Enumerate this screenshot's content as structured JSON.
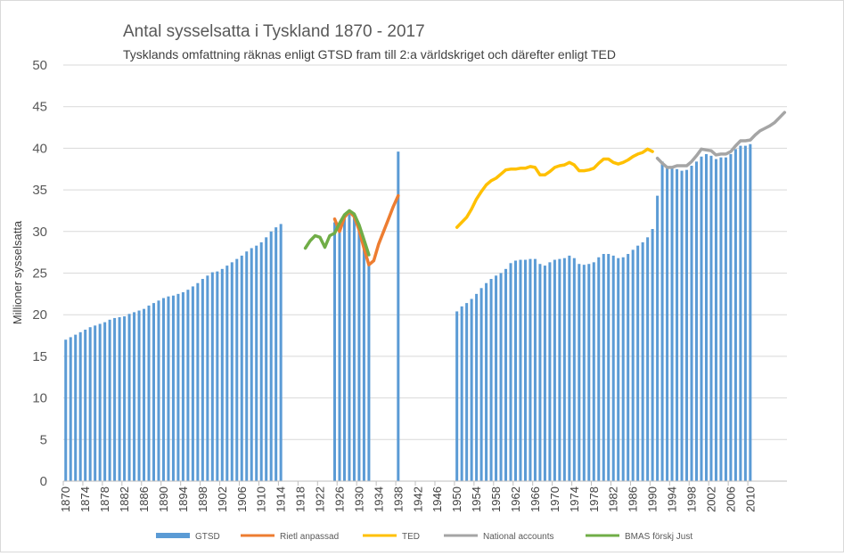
{
  "chart_data": {
    "type": "bar",
    "title": "Antal sysselsatta i Tyskland  1870 - 2017",
    "subtitle": "Tysklands omfattning räknas enligt GTSD fram till 2:a världskriget och därefter enligt TED",
    "xlabel": "",
    "ylabel": "Millioner sysselsatta",
    "xlim": [
      1870,
      2017
    ],
    "ylim": [
      0,
      50
    ],
    "yticks": [
      0,
      5,
      10,
      15,
      20,
      25,
      30,
      35,
      40,
      45,
      50
    ],
    "xtick_labels": [
      "1870",
      "1874",
      "1878",
      "1882",
      "1886",
      "1890",
      "1894",
      "1898",
      "1902",
      "1906",
      "1910",
      "1914",
      "1918",
      "1922",
      "1926",
      "1930",
      "1934",
      "1938",
      "1942",
      "1946",
      "1950",
      "1954",
      "1958",
      "1962",
      "1966",
      "1970",
      "1974",
      "1978",
      "1982",
      "1986",
      "1990",
      "1994",
      "1998",
      "2002",
      "2006",
      "2010"
    ],
    "grid": "horizontal",
    "legend_position": "bottom",
    "bar_series": {
      "name": "GTSD",
      "color": "#5b9bd5",
      "points": [
        [
          1870,
          17.0
        ],
        [
          1871,
          17.3
        ],
        [
          1872,
          17.6
        ],
        [
          1873,
          17.9
        ],
        [
          1874,
          18.2
        ],
        [
          1875,
          18.5
        ],
        [
          1876,
          18.7
        ],
        [
          1877,
          18.9
        ],
        [
          1878,
          19.1
        ],
        [
          1879,
          19.4
        ],
        [
          1880,
          19.6
        ],
        [
          1881,
          19.7
        ],
        [
          1882,
          19.8
        ],
        [
          1883,
          20.1
        ],
        [
          1884,
          20.3
        ],
        [
          1885,
          20.5
        ],
        [
          1886,
          20.7
        ],
        [
          1887,
          21.1
        ],
        [
          1888,
          21.4
        ],
        [
          1889,
          21.7
        ],
        [
          1890,
          22.0
        ],
        [
          1891,
          22.2
        ],
        [
          1892,
          22.3
        ],
        [
          1893,
          22.5
        ],
        [
          1894,
          22.7
        ],
        [
          1895,
          23.0
        ],
        [
          1896,
          23.4
        ],
        [
          1897,
          23.8
        ],
        [
          1898,
          24.3
        ],
        [
          1899,
          24.7
        ],
        [
          1900,
          25.1
        ],
        [
          1901,
          25.2
        ],
        [
          1902,
          25.5
        ],
        [
          1903,
          25.9
        ],
        [
          1904,
          26.3
        ],
        [
          1905,
          26.7
        ],
        [
          1906,
          27.1
        ],
        [
          1907,
          27.6
        ],
        [
          1908,
          28.0
        ],
        [
          1909,
          28.3
        ],
        [
          1910,
          28.7
        ],
        [
          1911,
          29.3
        ],
        [
          1912,
          30.0
        ],
        [
          1913,
          30.5
        ],
        [
          1914,
          30.9
        ],
        [
          1925,
          31.1
        ],
        [
          1926,
          30.3
        ],
        [
          1927,
          31.8
        ],
        [
          1928,
          32.4
        ],
        [
          1929,
          32.0
        ],
        [
          1930,
          30.4
        ],
        [
          1931,
          28.1
        ],
        [
          1932,
          26.0
        ],
        [
          1938,
          39.6
        ],
        [
          1950,
          20.4
        ],
        [
          1951,
          21.0
        ],
        [
          1952,
          21.4
        ],
        [
          1953,
          21.9
        ],
        [
          1954,
          22.5
        ],
        [
          1955,
          23.2
        ],
        [
          1956,
          23.8
        ],
        [
          1957,
          24.3
        ],
        [
          1958,
          24.7
        ],
        [
          1959,
          25.0
        ],
        [
          1960,
          25.5
        ],
        [
          1961,
          26.2
        ],
        [
          1962,
          26.5
        ],
        [
          1963,
          26.6
        ],
        [
          1964,
          26.6
        ],
        [
          1965,
          26.7
        ],
        [
          1966,
          26.7
        ],
        [
          1967,
          26.1
        ],
        [
          1968,
          25.9
        ],
        [
          1969,
          26.3
        ],
        [
          1970,
          26.6
        ],
        [
          1971,
          26.7
        ],
        [
          1972,
          26.8
        ],
        [
          1973,
          27.1
        ],
        [
          1974,
          26.8
        ],
        [
          1975,
          26.1
        ],
        [
          1976,
          26.0
        ],
        [
          1977,
          26.1
        ],
        [
          1978,
          26.3
        ],
        [
          1979,
          26.9
        ],
        [
          1980,
          27.3
        ],
        [
          1981,
          27.3
        ],
        [
          1982,
          27.1
        ],
        [
          1983,
          26.8
        ],
        [
          1984,
          26.9
        ],
        [
          1985,
          27.3
        ],
        [
          1986,
          27.8
        ],
        [
          1987,
          28.3
        ],
        [
          1988,
          28.7
        ],
        [
          1989,
          29.3
        ],
        [
          1990,
          30.3
        ],
        [
          1991,
          34.3
        ],
        [
          1992,
          38.4
        ],
        [
          1993,
          37.7
        ],
        [
          1994,
          37.6
        ],
        [
          1995,
          37.5
        ],
        [
          1996,
          37.3
        ],
        [
          1997,
          37.4
        ],
        [
          1998,
          37.9
        ],
        [
          1999,
          38.4
        ],
        [
          2000,
          39.0
        ],
        [
          2001,
          39.3
        ],
        [
          2002,
          39.1
        ],
        [
          2003,
          38.7
        ],
        [
          2004,
          38.9
        ],
        [
          2005,
          38.9
        ],
        [
          2006,
          39.3
        ],
        [
          2007,
          39.9
        ],
        [
          2008,
          40.3
        ],
        [
          2009,
          40.3
        ],
        [
          2010,
          40.5
        ]
      ]
    },
    "line_series": [
      {
        "name": "Rietl anpassad",
        "color": "#ed7d31",
        "points": [
          [
            1925,
            31.5
          ],
          [
            1926,
            30.0
          ],
          [
            1927,
            31.7
          ],
          [
            1928,
            32.4
          ],
          [
            1929,
            31.8
          ],
          [
            1930,
            30.2
          ],
          [
            1931,
            28.0
          ],
          [
            1932,
            26.0
          ],
          [
            1933,
            26.5
          ],
          [
            1934,
            28.5
          ],
          [
            1935,
            30.0
          ],
          [
            1936,
            31.5
          ],
          [
            1937,
            33.0
          ],
          [
            1938,
            34.3
          ]
        ]
      },
      {
        "name": "TED",
        "color": "#ffc000",
        "points": [
          [
            1950,
            30.5
          ],
          [
            1951,
            31.1
          ],
          [
            1952,
            31.7
          ],
          [
            1953,
            32.7
          ],
          [
            1954,
            33.9
          ],
          [
            1955,
            34.8
          ],
          [
            1956,
            35.6
          ],
          [
            1957,
            36.1
          ],
          [
            1958,
            36.4
          ],
          [
            1959,
            36.9
          ],
          [
            1960,
            37.4
          ],
          [
            1961,
            37.5
          ],
          [
            1962,
            37.5
          ],
          [
            1963,
            37.6
          ],
          [
            1964,
            37.6
          ],
          [
            1965,
            37.8
          ],
          [
            1966,
            37.7
          ],
          [
            1967,
            36.8
          ],
          [
            1968,
            36.8
          ],
          [
            1969,
            37.2
          ],
          [
            1970,
            37.7
          ],
          [
            1971,
            37.9
          ],
          [
            1972,
            38.0
          ],
          [
            1973,
            38.3
          ],
          [
            1974,
            38.0
          ],
          [
            1975,
            37.3
          ],
          [
            1976,
            37.3
          ],
          [
            1977,
            37.4
          ],
          [
            1978,
            37.6
          ],
          [
            1979,
            38.2
          ],
          [
            1980,
            38.7
          ],
          [
            1981,
            38.7
          ],
          [
            1982,
            38.3
          ],
          [
            1983,
            38.1
          ],
          [
            1984,
            38.3
          ],
          [
            1985,
            38.6
          ],
          [
            1986,
            39.0
          ],
          [
            1987,
            39.3
          ],
          [
            1988,
            39.5
          ],
          [
            1989,
            39.9
          ],
          [
            1990,
            39.6
          ]
        ]
      },
      {
        "name": "National accounts",
        "color": "#a5a5a5",
        "points": [
          [
            1991,
            38.8
          ],
          [
            1992,
            38.2
          ],
          [
            1993,
            37.7
          ],
          [
            1994,
            37.7
          ],
          [
            1995,
            37.9
          ],
          [
            1996,
            37.9
          ],
          [
            1997,
            37.9
          ],
          [
            1998,
            38.4
          ],
          [
            1999,
            39.1
          ],
          [
            2000,
            39.9
          ],
          [
            2001,
            39.8
          ],
          [
            2002,
            39.7
          ],
          [
            2003,
            39.2
          ],
          [
            2004,
            39.3
          ],
          [
            2005,
            39.3
          ],
          [
            2006,
            39.6
          ],
          [
            2007,
            40.3
          ],
          [
            2008,
            40.9
          ],
          [
            2009,
            40.9
          ],
          [
            2010,
            41.0
          ],
          [
            2011,
            41.6
          ],
          [
            2012,
            42.1
          ],
          [
            2013,
            42.4
          ],
          [
            2014,
            42.7
          ],
          [
            2015,
            43.1
          ],
          [
            2016,
            43.7
          ],
          [
            2017,
            44.3
          ]
        ]
      },
      {
        "name": "BMAS förskj Just",
        "color": "#70ad47",
        "points": [
          [
            1919,
            28.0
          ],
          [
            1920,
            28.9
          ],
          [
            1921,
            29.5
          ],
          [
            1922,
            29.3
          ],
          [
            1923,
            28.1
          ],
          [
            1924,
            29.5
          ],
          [
            1925,
            29.8
          ],
          [
            1926,
            31.0
          ],
          [
            1927,
            32.0
          ],
          [
            1928,
            32.5
          ],
          [
            1929,
            32.1
          ],
          [
            1930,
            30.8
          ],
          [
            1931,
            29.0
          ],
          [
            1932,
            27.2
          ]
        ]
      }
    ]
  }
}
